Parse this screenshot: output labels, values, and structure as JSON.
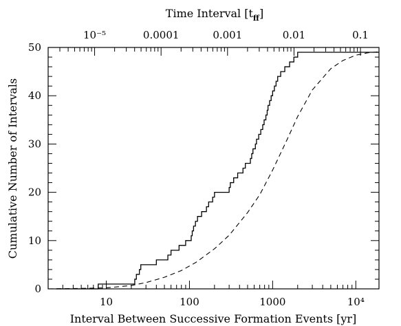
{
  "chart_data": {
    "type": "line",
    "xlabel": "Interval Between Successive Formation Events [yr]",
    "ylabel": "Cumulative Number of Intervals",
    "top_xlabel": "Time Interval [t",
    "top_xlabel_sub": "ff",
    "top_xlabel_close": "]",
    "x_scale": "log",
    "xlim": [
      2,
      19000
    ],
    "ylim": [
      0,
      50
    ],
    "x_ticks": [
      {
        "value": 10,
        "label": "10"
      },
      {
        "value": 100,
        "label": "100"
      },
      {
        "value": 1000,
        "label": "1000"
      },
      {
        "value": 10000,
        "label": "10⁴"
      }
    ],
    "y_ticks": [
      {
        "value": 0,
        "label": "0"
      },
      {
        "value": 10,
        "label": "10"
      },
      {
        "value": 20,
        "label": "20"
      },
      {
        "value": 30,
        "label": "30"
      },
      {
        "value": 40,
        "label": "40"
      },
      {
        "value": 50,
        "label": "50"
      }
    ],
    "top_axis_ticks": [
      {
        "value": 1e-05,
        "label": "10⁻⁵"
      },
      {
        "value": 0.0001,
        "label": "0.0001"
      },
      {
        "value": 0.001,
        "label": "0.001"
      },
      {
        "value": 0.01,
        "label": "0.01"
      },
      {
        "value": 0.1,
        "label": "0.1"
      }
    ],
    "top_axis_range": [
      2e-06,
      0.19
    ],
    "series": [
      {
        "style": "solid-step",
        "x": [
          2.5,
          8,
          22,
          23,
          25,
          26,
          40,
          55,
          60,
          75,
          90,
          105,
          108,
          112,
          118,
          125,
          140,
          160,
          170,
          190,
          200,
          300,
          310,
          340,
          380,
          440,
          470,
          540,
          560,
          580,
          620,
          640,
          680,
          720,
          760,
          790,
          830,
          860,
          880,
          920,
          960,
          1000,
          1050,
          1100,
          1150,
          1250,
          1400,
          1600,
          1800,
          2000,
          2300,
          3000,
          4000,
          5000,
          6000,
          8000,
          11000,
          12000,
          19000
        ],
        "y": [
          0,
          1,
          2,
          3,
          4,
          5,
          6,
          7,
          8,
          9,
          10,
          11,
          12,
          13,
          14,
          15,
          16,
          17,
          18,
          19,
          20,
          21,
          22,
          23,
          24,
          25,
          26,
          27,
          28,
          29,
          30,
          31,
          32,
          33,
          34,
          35,
          36,
          37,
          38,
          39,
          40,
          41,
          42,
          43,
          44,
          45,
          46,
          47,
          48,
          49,
          49,
          49,
          49,
          49,
          49,
          49,
          49,
          49,
          49
        ]
      },
      {
        "style": "dashed",
        "x": [
          2,
          5,
          10,
          20,
          30,
          50,
          80,
          120,
          200,
          300,
          500,
          700,
          1000,
          1500,
          2000,
          3000,
          5000,
          7000,
          10000,
          14000,
          19000
        ],
        "y": [
          0,
          0.1,
          0.2,
          0.7,
          1.3,
          2.4,
          3.8,
          5.5,
          8.3,
          11.1,
          15.8,
          19.5,
          24.6,
          31.0,
          35.7,
          41.2,
          45.6,
          47.3,
          48.4,
          48.9,
          49.1
        ]
      }
    ]
  }
}
